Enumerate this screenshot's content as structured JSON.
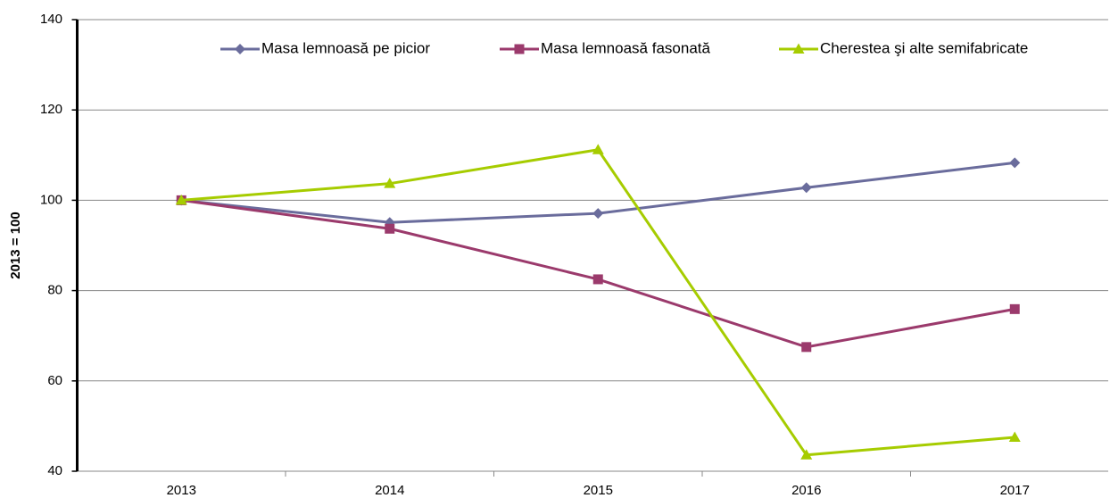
{
  "chart_data": {
    "type": "line",
    "y_label": "2013 = 100",
    "categories": [
      "2013",
      "2014",
      "2015",
      "2016",
      "2017"
    ],
    "series": [
      {
        "name": "Masa lemnoasă pe picior",
        "color": "#6a6c9c",
        "marker": "diamond",
        "values": [
          100,
          95.1,
          97.1,
          102.8,
          108.3
        ]
      },
      {
        "name": "Masa lemnoasă fasonată",
        "color": "#9b3a6c",
        "marker": "square",
        "values": [
          100,
          93.7,
          82.5,
          67.5,
          75.9
        ]
      },
      {
        "name": "Cherestea şi alte semifabricate",
        "color": "#a6cc00",
        "marker": "triangle",
        "values": [
          100,
          103.7,
          111.2,
          43.6,
          47.5
        ]
      }
    ],
    "ylim": [
      40,
      140
    ],
    "yticks": [
      40,
      60,
      80,
      100,
      120,
      140
    ],
    "grid": true,
    "legend": "top"
  }
}
